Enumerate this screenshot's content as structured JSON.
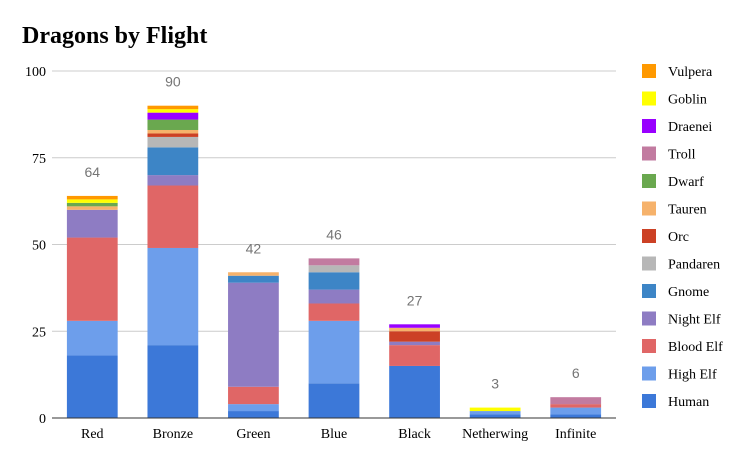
{
  "chart_data": {
    "type": "bar",
    "stacked": true,
    "title": "Dragons by Flight",
    "categories": [
      "Red",
      "Bronze",
      "Green",
      "Blue",
      "Black",
      "Netherwing",
      "Infinite"
    ],
    "totals": [
      "64",
      "90",
      "42",
      "46",
      "27",
      "3",
      "6"
    ],
    "ylim": [
      0,
      100
    ],
    "yticks": [
      0,
      25,
      50,
      75,
      100
    ],
    "grid": true,
    "legend_position": "right",
    "series": [
      {
        "name": "Human",
        "color": "#3c78d8",
        "values": [
          18,
          21,
          2,
          10,
          15,
          1,
          1
        ]
      },
      {
        "name": "High Elf",
        "color": "#6d9eeb",
        "values": [
          10,
          28,
          2,
          18,
          0,
          1,
          2
        ]
      },
      {
        "name": "Blood Elf",
        "color": "#e06666",
        "values": [
          24,
          18,
          5,
          5,
          6,
          0,
          1
        ]
      },
      {
        "name": "Night Elf",
        "color": "#8e7cc3",
        "values": [
          8,
          3,
          30,
          4,
          1,
          0,
          0
        ]
      },
      {
        "name": "Gnome",
        "color": "#3d85c6",
        "values": [
          0,
          8,
          2,
          5,
          0,
          0,
          0
        ]
      },
      {
        "name": "Pandaren",
        "color": "#b7b7b7",
        "values": [
          0,
          3,
          0,
          2,
          0,
          0,
          0
        ]
      },
      {
        "name": "Orc",
        "color": "#cc4125",
        "values": [
          0,
          1,
          0,
          0,
          3,
          0,
          0
        ]
      },
      {
        "name": "Tauren",
        "color": "#f6b26b",
        "values": [
          1,
          1,
          1,
          0,
          1,
          0,
          0
        ]
      },
      {
        "name": "Dwarf",
        "color": "#6aa84f",
        "values": [
          1,
          3,
          0,
          0,
          0,
          0,
          0
        ]
      },
      {
        "name": "Troll",
        "color": "#c27ba0",
        "values": [
          0,
          0,
          0,
          2,
          0,
          0,
          2
        ]
      },
      {
        "name": "Draenei",
        "color": "#9900ff",
        "values": [
          0,
          2,
          0,
          0,
          1,
          0,
          0
        ]
      },
      {
        "name": "Goblin",
        "color": "#ffff00",
        "values": [
          1,
          1,
          0,
          0,
          0,
          1,
          0
        ]
      },
      {
        "name": "Vulpera",
        "color": "#ff9900",
        "values": [
          1,
          1,
          0,
          0,
          0,
          0,
          0
        ]
      }
    ]
  }
}
